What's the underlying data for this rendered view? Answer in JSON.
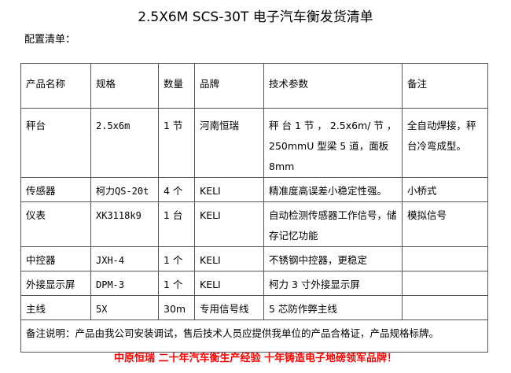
{
  "title": "2.5X6M SCS-30T 电子汽车衡发货清单",
  "subtitle": "配置清单：",
  "table": {
    "headers": [
      "产品名称",
      "规格",
      "数量",
      "品牌",
      "技术参数",
      "备注"
    ],
    "rows": [
      [
        "秤台",
        "2.5x6m",
        "1 节",
        "河南恒瑞",
        "秤 台 1 节 ， 2.5x6m/ 节 ， 250mmU 型梁 5 道，面板 8mm",
        "全自动焊接，秤台冷弯成型。"
      ],
      [
        "传感器",
        "柯力QS-20t",
        "4 个",
        "KELI",
        "精准度高误差小稳定性强。",
        "小桥式"
      ],
      [
        "仪表",
        "XK3118k9",
        "1 台",
        "KELI",
        "自动检测传感器工作信号，储存记忆功能",
        "模拟信号"
      ],
      [
        "中控器",
        "JXH-4",
        "1 个",
        "KELI",
        "不锈钢中控器，更稳定",
        ""
      ],
      [
        "外接显示屏",
        "DPM-3",
        "1 个",
        "KELI",
        "柯力 3 寸外接显示屏",
        ""
      ],
      [
        "主线",
        "5X",
        "30m",
        "专用信号线",
        "5 芯防作弊主线",
        ""
      ]
    ],
    "note": "备注说明：产品由我公司安装调试，售后技术人员应提供我单位的产品合格证，产品规格标牌。"
  },
  "slogan": "中原恒瑞  二十年汽车衡生产经验  十年铸造电子地磅领军品牌！",
  "colors": {
    "slogan": "#ff0000",
    "border": "#555555"
  }
}
